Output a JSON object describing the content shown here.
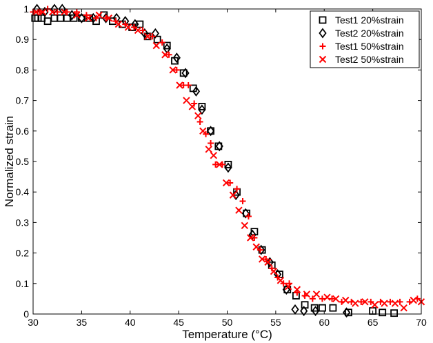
{
  "chart_data": {
    "type": "scatter",
    "title": "",
    "xlabel": "Temperature (°C)",
    "ylabel": "Normalized strain",
    "xlim": [
      30,
      70
    ],
    "ylim": [
      0,
      1
    ],
    "xticks": [
      30,
      35,
      40,
      45,
      50,
      55,
      60,
      65,
      70
    ],
    "yticks": [
      0,
      0.1,
      0.2,
      0.3,
      0.4,
      0.5,
      0.6,
      0.7,
      0.8,
      0.9,
      1
    ],
    "xtick_labels": [
      "30",
      "35",
      "40",
      "45",
      "50",
      "55",
      "60",
      "65",
      "70"
    ],
    "ytick_labels": [
      "0",
      "0.1",
      "0.2",
      "0.3",
      "0.4",
      "0.5",
      "0.6",
      "0.7",
      "0.8",
      "0.9",
      "1"
    ],
    "grid": false,
    "legend_position": "top-right",
    "series": [
      {
        "name": "Test1 20%strain",
        "marker": "square",
        "color": "#000000",
        "points": [
          [
            30.2,
            0.97
          ],
          [
            30.5,
            0.97
          ],
          [
            30.9,
            0.97
          ],
          [
            31.5,
            0.96
          ],
          [
            32.2,
            0.97
          ],
          [
            32.8,
            0.97
          ],
          [
            33.5,
            0.97
          ],
          [
            34.2,
            0.97
          ],
          [
            35.0,
            0.97
          ],
          [
            35.8,
            0.97
          ],
          [
            36.5,
            0.96
          ],
          [
            37.3,
            0.98
          ],
          [
            38.2,
            0.96
          ],
          [
            39.2,
            0.95
          ],
          [
            40.2,
            0.94
          ],
          [
            41.0,
            0.95
          ],
          [
            41.8,
            0.91
          ],
          [
            42.8,
            0.9
          ],
          [
            43.8,
            0.88
          ],
          [
            44.6,
            0.83
          ],
          [
            45.5,
            0.79
          ],
          [
            46.5,
            0.74
          ],
          [
            47.4,
            0.68
          ],
          [
            48.3,
            0.6
          ],
          [
            49.1,
            0.55
          ],
          [
            50.1,
            0.49
          ],
          [
            51.0,
            0.4
          ],
          [
            52.0,
            0.33
          ],
          [
            52.8,
            0.27
          ],
          [
            53.6,
            0.21
          ],
          [
            54.6,
            0.16
          ],
          [
            55.4,
            0.13
          ],
          [
            56.2,
            0.08
          ],
          [
            57.1,
            0.06
          ],
          [
            58.0,
            0.03
          ],
          [
            59.0,
            0.02
          ],
          [
            59.8,
            0.02
          ],
          [
            60.9,
            0.02
          ],
          [
            62.5,
            0.005
          ],
          [
            65.0,
            0.01
          ],
          [
            66.0,
            0.005
          ],
          [
            67.2,
            0.003
          ]
        ]
      },
      {
        "name": "Test2 20%strain",
        "marker": "diamond",
        "color": "#000000",
        "points": [
          [
            30.4,
            1.0
          ],
          [
            31.2,
            0.99
          ],
          [
            32.2,
            1.0
          ],
          [
            33.0,
            1.0
          ],
          [
            34.0,
            0.98
          ],
          [
            35.0,
            0.97
          ],
          [
            36.2,
            0.97
          ],
          [
            37.5,
            0.97
          ],
          [
            38.6,
            0.97
          ],
          [
            39.5,
            0.96
          ],
          [
            40.5,
            0.95
          ],
          [
            41.5,
            0.92
          ],
          [
            42.6,
            0.92
          ],
          [
            43.8,
            0.87
          ],
          [
            44.8,
            0.84
          ],
          [
            45.7,
            0.79
          ],
          [
            46.8,
            0.73
          ],
          [
            47.4,
            0.67
          ],
          [
            48.3,
            0.6
          ],
          [
            49.2,
            0.55
          ],
          [
            50.1,
            0.48
          ],
          [
            50.9,
            0.39
          ],
          [
            51.9,
            0.33
          ],
          [
            52.6,
            0.26
          ],
          [
            53.5,
            0.21
          ],
          [
            54.4,
            0.17
          ],
          [
            55.2,
            0.13
          ],
          [
            56.1,
            0.08
          ],
          [
            57.0,
            0.015
          ],
          [
            57.9,
            0.01
          ],
          [
            59.1,
            0.01
          ],
          [
            62.3,
            0.005
          ]
        ]
      },
      {
        "name": "Test1 50%strain",
        "marker": "plus",
        "color": "#ff0000",
        "points": [
          [
            30.0,
            0.99
          ],
          [
            30.7,
            0.99
          ],
          [
            31.5,
            1.0
          ],
          [
            32.5,
            0.99
          ],
          [
            33.5,
            0.99
          ],
          [
            34.5,
            0.99
          ],
          [
            35.5,
            0.98
          ],
          [
            36.5,
            0.97
          ],
          [
            37.5,
            0.97
          ],
          [
            38.5,
            0.96
          ],
          [
            39.5,
            0.95
          ],
          [
            40.4,
            0.94
          ],
          [
            41.3,
            0.93
          ],
          [
            42.3,
            0.91
          ],
          [
            43.3,
            0.89
          ],
          [
            44.0,
            0.85
          ],
          [
            44.8,
            0.8
          ],
          [
            45.5,
            0.75
          ],
          [
            46.0,
            0.75
          ],
          [
            46.6,
            0.69
          ],
          [
            47.2,
            0.63
          ],
          [
            47.8,
            0.59
          ],
          [
            48.3,
            0.56
          ],
          [
            48.8,
            0.49
          ],
          [
            49.5,
            0.49
          ],
          [
            50.3,
            0.43
          ],
          [
            51.0,
            0.41
          ],
          [
            51.6,
            0.37
          ],
          [
            52.2,
            0.32
          ],
          [
            52.8,
            0.25
          ],
          [
            53.4,
            0.21
          ],
          [
            54.0,
            0.18
          ],
          [
            54.6,
            0.15
          ],
          [
            55.2,
            0.12
          ],
          [
            55.8,
            0.1
          ],
          [
            56.4,
            0.1
          ],
          [
            57.2,
            0.07
          ],
          [
            58.0,
            0.06
          ],
          [
            58.8,
            0.05
          ],
          [
            59.8,
            0.05
          ],
          [
            60.8,
            0.05
          ],
          [
            61.8,
            0.04
          ],
          [
            62.8,
            0.04
          ],
          [
            63.8,
            0.04
          ],
          [
            64.8,
            0.04
          ],
          [
            65.8,
            0.04
          ],
          [
            66.8,
            0.04
          ],
          [
            67.8,
            0.04
          ],
          [
            68.8,
            0.04
          ],
          [
            69.6,
            0.05
          ]
        ]
      },
      {
        "name": "Test2 50%strain",
        "marker": "x",
        "color": "#ff0000",
        "points": [
          [
            30.3,
            0.99
          ],
          [
            31.0,
            0.99
          ],
          [
            32.0,
            0.99
          ],
          [
            33.2,
            0.99
          ],
          [
            34.5,
            0.98
          ],
          [
            35.7,
            0.97
          ],
          [
            36.8,
            0.98
          ],
          [
            37.8,
            0.97
          ],
          [
            38.8,
            0.95
          ],
          [
            39.8,
            0.94
          ],
          [
            40.8,
            0.93
          ],
          [
            41.8,
            0.91
          ],
          [
            42.7,
            0.88
          ],
          [
            43.6,
            0.85
          ],
          [
            44.4,
            0.8
          ],
          [
            45.1,
            0.75
          ],
          [
            45.8,
            0.7
          ],
          [
            46.4,
            0.68
          ],
          [
            47.0,
            0.65
          ],
          [
            47.5,
            0.6
          ],
          [
            48.1,
            0.54
          ],
          [
            48.6,
            0.52
          ],
          [
            49.2,
            0.49
          ],
          [
            49.9,
            0.43
          ],
          [
            50.6,
            0.39
          ],
          [
            51.2,
            0.34
          ],
          [
            51.8,
            0.29
          ],
          [
            52.4,
            0.25
          ],
          [
            53.0,
            0.22
          ],
          [
            53.6,
            0.18
          ],
          [
            54.2,
            0.17
          ],
          [
            54.8,
            0.14
          ],
          [
            55.5,
            0.11
          ],
          [
            56.3,
            0.09
          ],
          [
            57.2,
            0.08
          ],
          [
            58.2,
            0.065
          ],
          [
            59.2,
            0.065
          ],
          [
            60.3,
            0.055
          ],
          [
            61.2,
            0.05
          ],
          [
            62.2,
            0.045
          ],
          [
            63.2,
            0.035
          ],
          [
            64.2,
            0.04
          ],
          [
            65.2,
            0.03
          ],
          [
            66.2,
            0.035
          ],
          [
            67.3,
            0.035
          ],
          [
            68.2,
            0.02
          ],
          [
            69.2,
            0.045
          ],
          [
            70.0,
            0.04
          ]
        ]
      }
    ]
  }
}
